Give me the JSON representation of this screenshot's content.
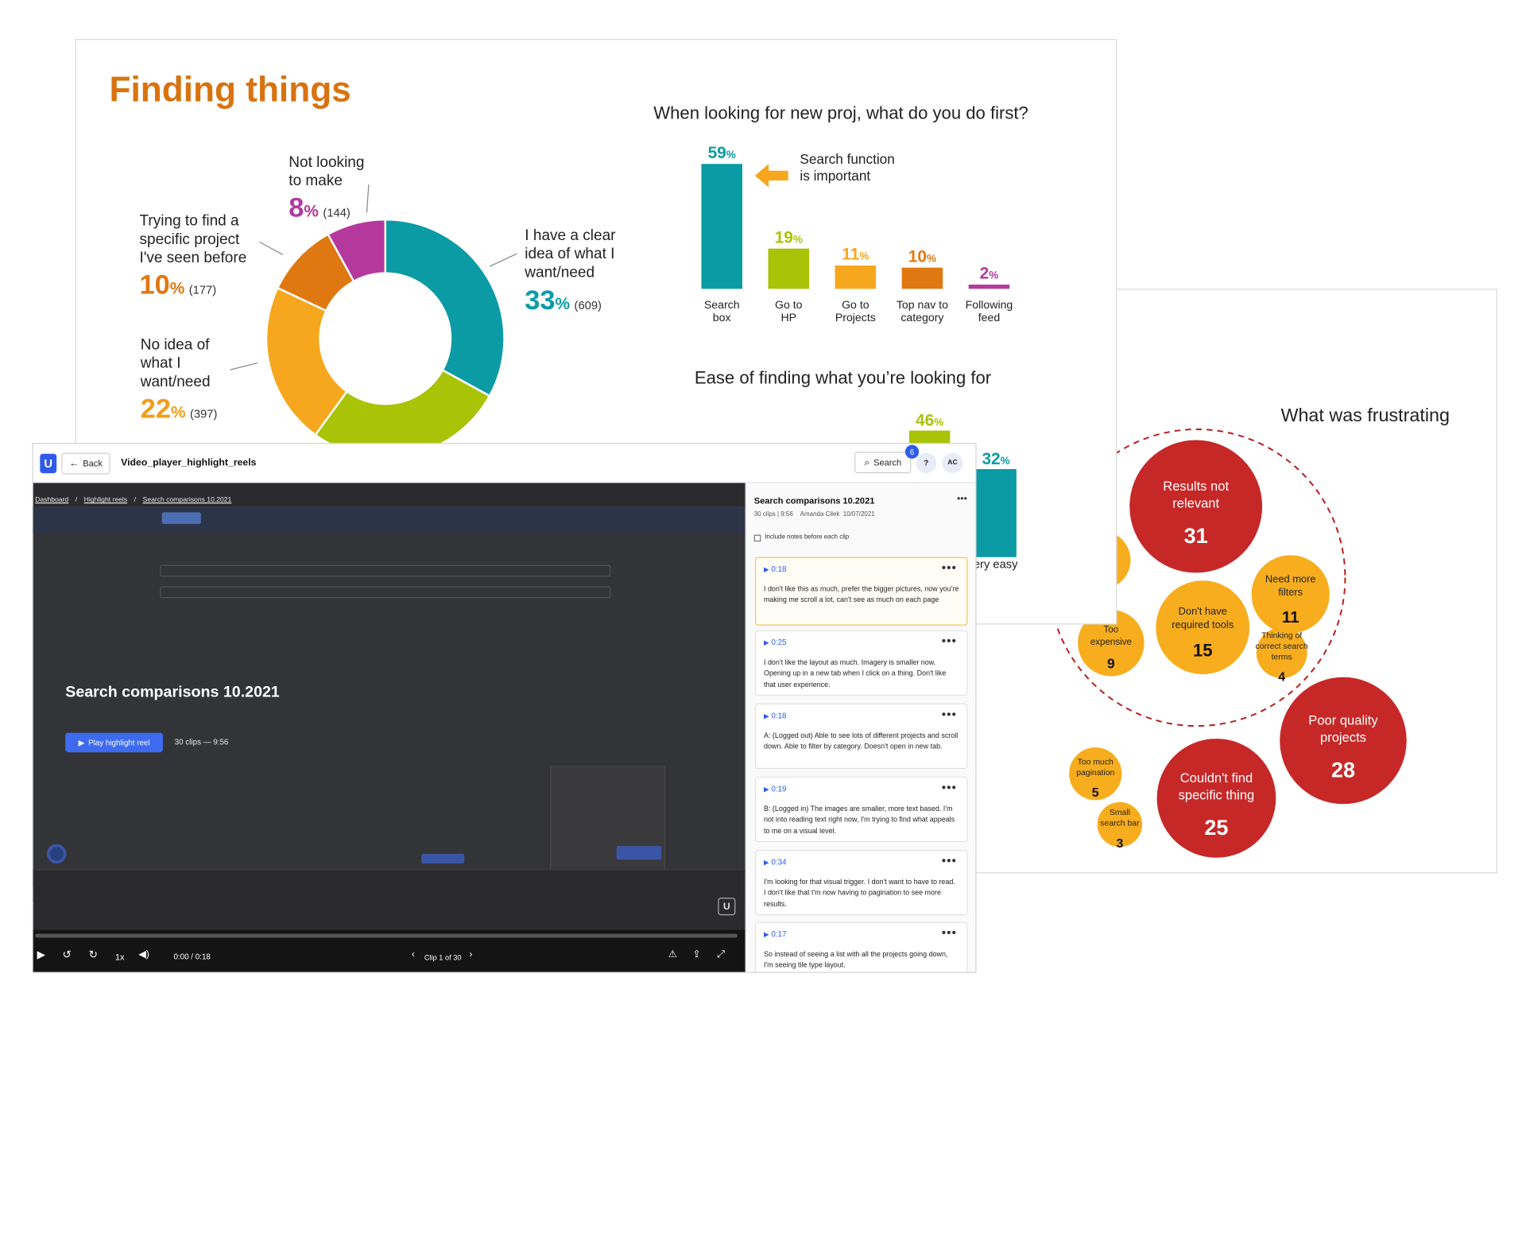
{
  "slide1": {
    "title": "Finding things",
    "donut": [
      {
        "label": "I have a clear idea of what I want/need",
        "percent": "33",
        "count": "(609)",
        "color": "#0b9ba5",
        "value": 33
      },
      {
        "label": "",
        "percent": "",
        "count": "",
        "color": "#a9c306",
        "value": 27
      },
      {
        "label": "No idea of what I want/need",
        "percent": "22",
        "count": "(397)",
        "color": "#f7a71d",
        "value": 22
      },
      {
        "label": "Trying to find a specific project I've seen before",
        "percent": "10",
        "count": "(177)",
        "color": "#e07811",
        "value": 10
      },
      {
        "label": "Not looking to make",
        "percent": "8",
        "count": "(144)",
        "color": "#b5399d",
        "value": 8
      }
    ],
    "donut_labels": {
      "clear": [
        "I have a clear",
        "idea of what I",
        "want/need"
      ],
      "noidea": [
        "No idea of",
        "what I",
        "want/need"
      ],
      "trying": [
        "Trying to find a",
        "specific project",
        "I've seen before"
      ],
      "notlooking": [
        "Not looking",
        "to make"
      ],
      "pct_sign": "%"
    },
    "bar_title": "When looking for new proj, what do you do first?",
    "bar_callout": [
      "Search function",
      "is important"
    ],
    "ease_title": "Ease of finding what you’re looking for",
    "ease_label_partial": "ery easy"
  },
  "chart_data": [
    {
      "type": "bar",
      "title": "When looking for new proj, what do you do first?",
      "categories": [
        "Search box",
        "Go to HP",
        "Go to Projects",
        "Top nav to category",
        "Following feed"
      ],
      "values": [
        59,
        19,
        11,
        10,
        2
      ],
      "colors": [
        "#0b9ba5",
        "#a9c306",
        "#f7a71d",
        "#e07811",
        "#b5399d"
      ],
      "ylim": [
        0,
        59
      ]
    },
    {
      "type": "bar",
      "title": "Ease of finding what you’re looking for",
      "categories": [
        "",
        "ery easy"
      ],
      "values": [
        46,
        32
      ],
      "colors": [
        "#a9c306",
        "#0b9ba5"
      ]
    }
  ],
  "bar_labels": [
    [
      "Search",
      "box"
    ],
    [
      "Go to",
      "HP"
    ],
    [
      "Go to",
      "Projects"
    ],
    [
      "Top nav to",
      "category"
    ],
    [
      "Following",
      "feed"
    ]
  ],
  "slide3": {
    "title": "What was frustrating",
    "bubbles": [
      {
        "lines": [
          "Results not",
          "relevant"
        ],
        "value": "31",
        "kind": "red"
      },
      {
        "lines": [
          "Need more",
          "filters"
        ],
        "value": "11",
        "kind": "orange"
      },
      {
        "lines": [
          "Don't have",
          "required tools"
        ],
        "value": "15",
        "kind": "orange"
      },
      {
        "lines": [
          "Too",
          "expensive"
        ],
        "value": "9",
        "kind": "orange"
      },
      {
        "lines": [
          "Thinking of",
          "correct search",
          "terms"
        ],
        "value": "4",
        "kind": "orange"
      },
      {
        "lines": [
          "Poor quality",
          "projects"
        ],
        "value": "28",
        "kind": "red"
      },
      {
        "lines": [
          "Couldn't find",
          "specific thing"
        ],
        "value": "25",
        "kind": "red"
      },
      {
        "lines": [
          "Too much",
          "pagination"
        ],
        "value": "5",
        "kind": "orange"
      },
      {
        "lines": [
          "Small",
          "search bar"
        ],
        "value": "3",
        "kind": "orange"
      }
    ]
  },
  "player": {
    "logo": "U",
    "back_label": "Back",
    "file_title": "Video_player_highlight_reels",
    "search_label": "Search",
    "notif_count": "6",
    "help_label": "?",
    "avatar": "AC",
    "breadcrumb": [
      "Dashboard",
      "Highlight reels",
      "Search comparisons 10.2021"
    ],
    "crumb_sep": "/",
    "reel_title": "Search comparisons 10.2021",
    "play_button": "Play highlight reel",
    "reel_meta": "30 clips — 9:56",
    "controls": {
      "speed": "1x",
      "time": "0:00 / 0:18",
      "clip": "Clip 1 of 30"
    },
    "panel": {
      "title": "Search comparisons 10.2021",
      "meta_clips": "30 clips | 9:56",
      "meta_author": "Amanda Cilek",
      "meta_date": "10/07/2021",
      "checkbox_label": "Include notes before each clip",
      "more": "•••"
    },
    "clips": [
      {
        "time": "0:18",
        "text": "I don't like this as much, prefer the bigger pictures, now you're making me scroll a lot, can't see as much on each page"
      },
      {
        "time": "0:25",
        "text": "I don't like the layout as much. Imagery is smaller now. Opening up in a new tab when I click on a thing. Don't like that user experience."
      },
      {
        "time": "0:18",
        "text": "A: (Logged out) Able to see lots of different projects and scroll down. Able to filter by category. Doesn't open in new tab."
      },
      {
        "time": "0:19",
        "text": "B: (Logged in) The images are smaller, more text based. I'm not into reading text right now, I'm trying to find what appeals to me on a visual level."
      },
      {
        "time": "0:34",
        "text": "I'm looking for that visual trigger. I don't want to have to read. I don't like that I'm now having to pagination to see more results."
      },
      {
        "time": "0:17",
        "text": "So instead of seeing a list with all the projects going down, I'm seeing tile type layout."
      }
    ]
  }
}
